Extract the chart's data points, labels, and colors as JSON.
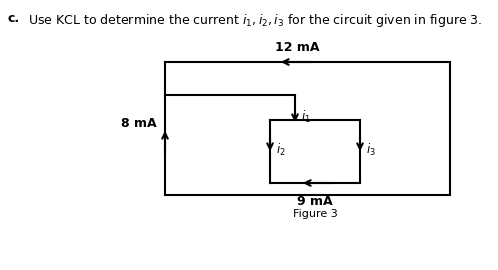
{
  "title_c": "c.",
  "title_text": "Use KCL to determine the current $i_1, i_2, i_3$ for the circuit given in figure 3.",
  "label_12mA": "12 mA",
  "label_8mA": "8 mA",
  "label_9mA": "9 mA",
  "label_i1": "$i_1$",
  "label_i2": "$i_2$",
  "label_i3": "$i_3$",
  "label_fig": "Figure 3",
  "bg_color": "#ffffff",
  "line_color": "#000000",
  "title_fontsize": 9.0,
  "label_fontsize": 8.5,
  "small_fontsize": 8.0
}
